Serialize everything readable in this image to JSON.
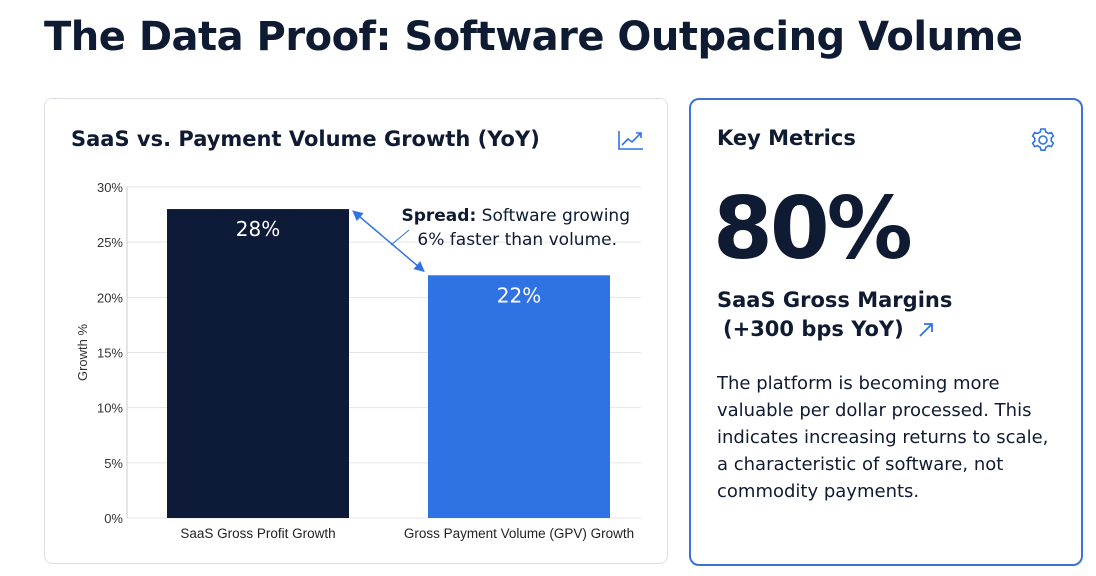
{
  "page": {
    "title": "The Data Proof: Software Outpacing Volume"
  },
  "chart_card": {
    "title": "SaaS vs. Payment Volume Growth (YoY)",
    "icon": "trend-line-icon"
  },
  "chart_data": {
    "type": "bar",
    "title": "SaaS vs. Payment Volume Growth (YoY)",
    "categories": [
      "SaaS Gross Profit Growth",
      "Gross Payment Volume (GPV) Growth"
    ],
    "values": [
      28,
      22
    ],
    "data_labels": [
      "28%",
      "22%"
    ],
    "colors": [
      "#0d1a38",
      "#2f72e4"
    ],
    "ylabel": "Growth %",
    "xlabel": "",
    "ylim": [
      0,
      30
    ],
    "yticks": [
      0,
      5,
      10,
      15,
      20,
      25,
      30
    ],
    "ytick_labels": [
      "0%",
      "5%",
      "10%",
      "15%",
      "20%",
      "25%",
      "30%"
    ],
    "grid": true,
    "annotation": {
      "bold": "Spread:",
      "line1": " Software growing",
      "line2": "6% faster than volume."
    }
  },
  "metrics_card": {
    "title": "Key Metrics",
    "icon": "gear-icon",
    "big_value": "80%",
    "label_line1": "SaaS Gross Margins",
    "label_line2": "(+300 bps YoY)",
    "description": "The platform is becoming more valuable per dollar processed. This indicates increasing returns to scale, a characteristic of software, not commodity payments.",
    "accent": "#3b73d4"
  }
}
